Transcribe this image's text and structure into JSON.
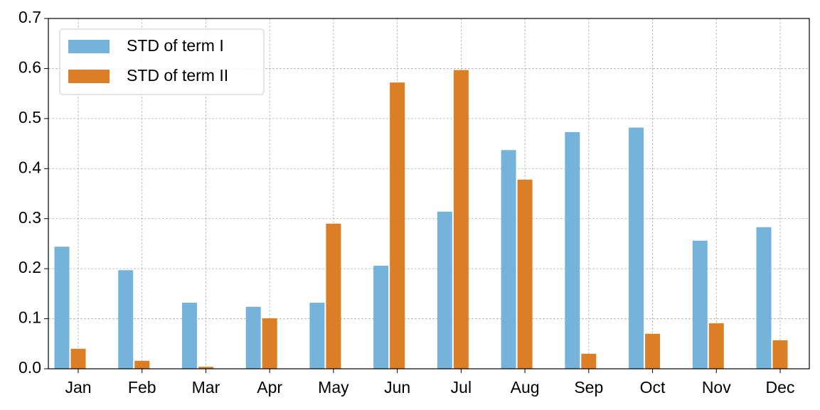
{
  "chart_data": {
    "type": "bar",
    "categories": [
      "Jan",
      "Feb",
      "Mar",
      "Apr",
      "May",
      "Jun",
      "Jul",
      "Aug",
      "Sep",
      "Oct",
      "Nov",
      "Dec"
    ],
    "series": [
      {
        "name": "STD of term I",
        "color": "#76b3da",
        "values": [
          0.244,
          0.197,
          0.132,
          0.124,
          0.132,
          0.206,
          0.314,
          0.437,
          0.473,
          0.482,
          0.256,
          0.283
        ]
      },
      {
        "name": "STD of term II",
        "color": "#db7e26",
        "values": [
          0.04,
          0.016,
          0.004,
          0.101,
          0.29,
          0.572,
          0.597,
          0.378,
          0.03,
          0.07,
          0.091,
          0.057
        ]
      }
    ],
    "ylim": [
      0,
      0.7
    ],
    "yticks": [
      {
        "value": 0,
        "label": "0.0"
      },
      0.1,
      0.2,
      0.3,
      0.4,
      0.5,
      0.6,
      0.7
    ],
    "grid": true,
    "legend": "upper left"
  }
}
